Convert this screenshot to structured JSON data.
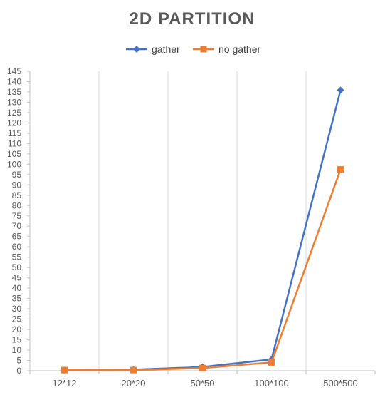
{
  "chart_data": {
    "type": "line",
    "title": "2D PARTITION",
    "xlabel": "",
    "ylabel": "",
    "categories": [
      "12*12",
      "20*20",
      "50*50",
      "100*100",
      "500*500"
    ],
    "ylim": [
      0,
      145
    ],
    "yticks": [
      0,
      5,
      10,
      15,
      20,
      25,
      30,
      35,
      40,
      45,
      50,
      55,
      60,
      65,
      70,
      75,
      80,
      85,
      90,
      95,
      100,
      105,
      110,
      115,
      120,
      125,
      130,
      135,
      140,
      145
    ],
    "grid": "vertical category separators",
    "legend_position": "top",
    "series": [
      {
        "name": "gather",
        "values": [
          0.3,
          0.5,
          1.8,
          5.5,
          135.9
        ],
        "color": "#4472C4",
        "marker": "diamond"
      },
      {
        "name": "no gather",
        "values": [
          0.3,
          0.3,
          1.3,
          4.0,
          97.5
        ],
        "color": "#ED7D31",
        "marker": "square"
      }
    ]
  }
}
